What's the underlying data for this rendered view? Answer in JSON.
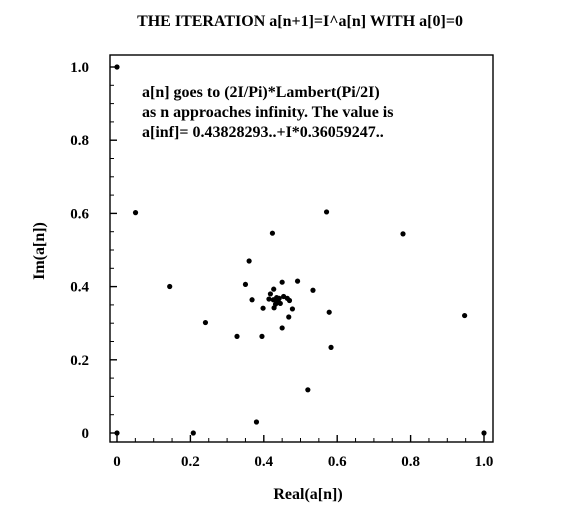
{
  "chart_data": {
    "type": "scatter",
    "title": "THE ITERATION a[n+1]=I^a[n] WITH a[0]=0",
    "xlabel": "Real(a[n])",
    "ylabel": "Im(a[n])",
    "xlim": [
      0,
      1
    ],
    "ylim": [
      0,
      1
    ],
    "x_ticks": [
      "0",
      "0.2",
      "0.4",
      "0.6",
      "0.8",
      "1.0"
    ],
    "y_ticks": [
      "0",
      "0.2",
      "0.4",
      "0.6",
      "0.8",
      "1.0"
    ],
    "x_tick_values": [
      0,
      0.2,
      0.4,
      0.6,
      0.8,
      1.0
    ],
    "y_tick_values": [
      0,
      0.2,
      0.4,
      0.6,
      0.8,
      1.0
    ],
    "grid": false,
    "annotation": [
      "a[n] goes to (2I/Pi)*Lambert(Pi/2I)",
      "as n approaches infinity. The value is",
      "a[inf]= 0.43828293..+I*0.36059247.."
    ],
    "points": [
      [
        0.0,
        0.0
      ],
      [
        0.0,
        1.0
      ],
      [
        0.2079,
        0.0
      ],
      [
        0.9472,
        0.3208
      ],
      [
        0.0505,
        0.6021
      ],
      [
        0.7793,
        0.544
      ],
      [
        0.1436,
        0.4003
      ],
      [
        0.571,
        0.604
      ],
      [
        0.4235,
        0.546
      ],
      [
        0.241,
        0.3018
      ],
      [
        0.5782,
        0.33
      ],
      [
        0.5832,
        0.234
      ],
      [
        0.52,
        0.118
      ],
      [
        0.38,
        0.03
      ],
      [
        0.327,
        0.264
      ],
      [
        0.395,
        0.264
      ],
      [
        0.534,
        0.39
      ],
      [
        0.36,
        0.47
      ],
      [
        0.492,
        0.415
      ],
      [
        0.35,
        0.406
      ],
      [
        0.45,
        0.287
      ],
      [
        0.468,
        0.317
      ],
      [
        0.368,
        0.364
      ],
      [
        0.45,
        0.412
      ],
      [
        0.427,
        0.393
      ],
      [
        0.398,
        0.341
      ],
      [
        0.478,
        0.339
      ],
      [
        0.428,
        0.342
      ],
      [
        0.414,
        0.366
      ],
      [
        0.454,
        0.373
      ],
      [
        0.418,
        0.38
      ],
      [
        0.445,
        0.354
      ],
      [
        0.432,
        0.352
      ],
      [
        0.442,
        0.368
      ],
      [
        0.426,
        0.364
      ],
      [
        0.435,
        0.37
      ],
      [
        0.44,
        0.357
      ],
      [
        0.437,
        0.362
      ],
      [
        0.439,
        0.36
      ],
      [
        0.464,
        0.368
      ],
      [
        0.47,
        0.362
      ],
      [
        1.0,
        0.0
      ]
    ]
  }
}
